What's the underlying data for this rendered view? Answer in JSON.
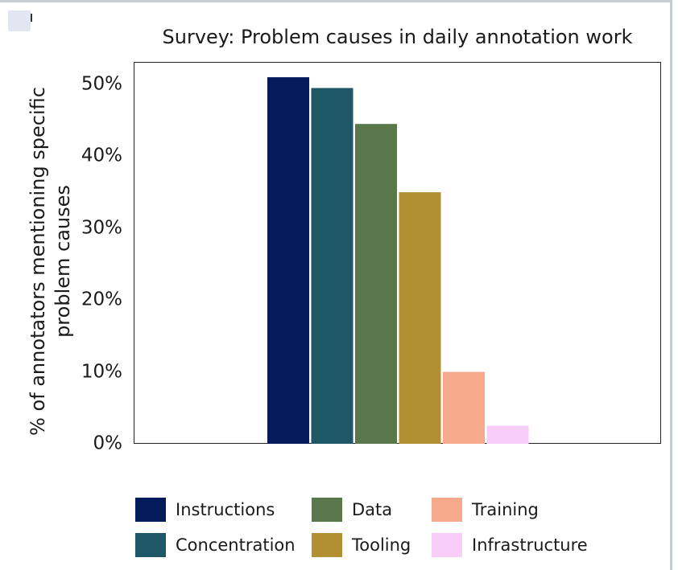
{
  "chart_data": {
    "type": "bar",
    "title": "Survey: Problem causes in daily annotation work",
    "ylabel": "% of annotators mentioning specific problem causes",
    "ylabel_lines": [
      "% of annotators mentioning specific",
      "problem causes"
    ],
    "xlabel": "",
    "ylim": [
      0,
      55
    ],
    "yticks": [
      0,
      10,
      20,
      30,
      40,
      50
    ],
    "ytick_labels": [
      "0%",
      "10%",
      "20%",
      "30%",
      "40%",
      "50%"
    ],
    "grid": false,
    "legend_position": "bottom",
    "series": [
      {
        "name": "Instructions",
        "value": 51,
        "color": "#041b5b"
      },
      {
        "name": "Concentration",
        "value": 49.5,
        "color": "#1e5866"
      },
      {
        "name": "Data",
        "value": 44.5,
        "color": "#58774a"
      },
      {
        "name": "Tooling",
        "value": 35,
        "color": "#b28f33"
      },
      {
        "name": "Training",
        "value": 10,
        "color": "#f7a98b"
      },
      {
        "name": "Infrastructure",
        "value": 2.5,
        "color": "#f8cef9"
      }
    ]
  }
}
